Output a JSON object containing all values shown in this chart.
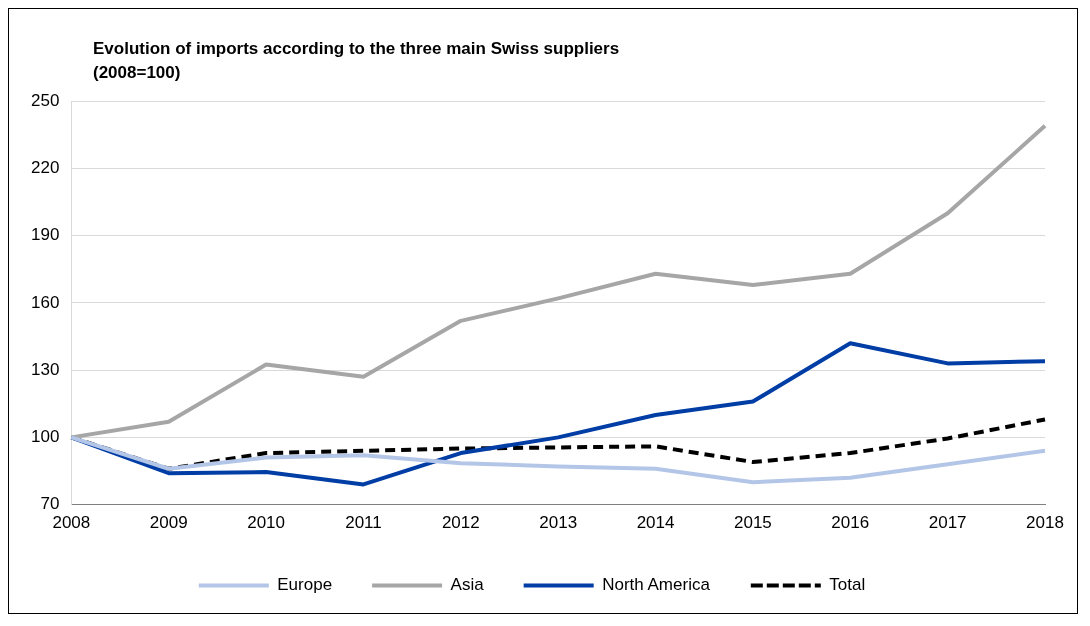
{
  "chart_data": {
    "type": "line",
    "title": "Evolution of imports according to the three main Swiss suppliers\n(2008=100)",
    "categories": [
      "2008",
      "2009",
      "2010",
      "2011",
      "2012",
      "2013",
      "2014",
      "2015",
      "2016",
      "2017",
      "2018"
    ],
    "series": [
      {
        "name": "Europe",
        "color": "#b4c6e7",
        "values": [
          100,
          86,
          91,
          92,
          88.5,
          87,
          86,
          80,
          82,
          88,
          94
        ]
      },
      {
        "name": "Asia",
        "color": "#a6a6a6",
        "values": [
          100,
          107,
          132.5,
          127,
          152,
          162,
          173,
          168,
          173,
          200,
          239
        ]
      },
      {
        "name": "North America",
        "color": "#003da5",
        "values": [
          100,
          84,
          84.5,
          79,
          93,
          100,
          110,
          116,
          142,
          133,
          134
        ]
      },
      {
        "name": "Total",
        "color": "#000000",
        "line_style": "dashed",
        "values": [
          100,
          86,
          93,
          94,
          95,
          95.5,
          96,
          89,
          93,
          99.5,
          108
        ]
      }
    ],
    "ylim": [
      70,
      250
    ],
    "yticks": [
      70,
      100,
      130,
      160,
      190,
      220,
      250
    ],
    "grid": "y",
    "legend": "bottom",
    "marker": "none"
  }
}
